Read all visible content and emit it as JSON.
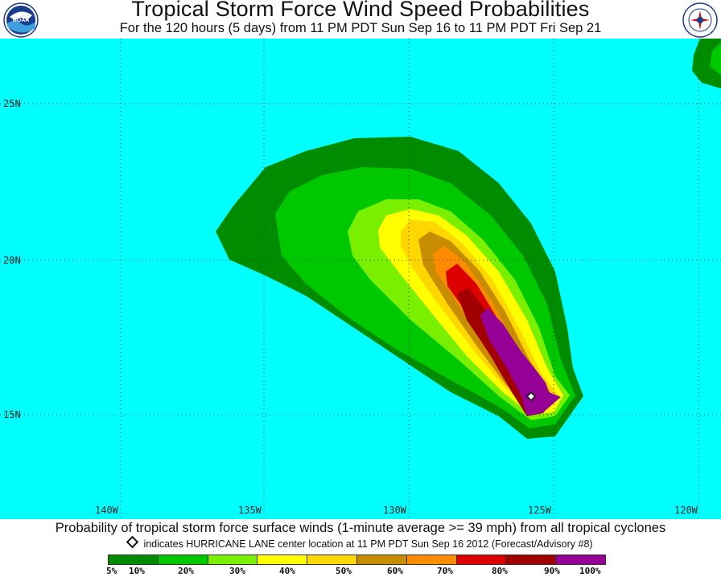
{
  "header": {
    "title": "Tropical Storm Force Wind Speed Probabilities",
    "subtitle": "For the 120 hours (5 days) from 11 PM PDT Sun Sep 16 to 11 PM PDT Fri Sep 21",
    "left_logo": "noaa-logo",
    "right_logo": "national-weather-service-logo"
  },
  "map": {
    "ocean_color": "#00ffff",
    "lat_labels": [
      "25N",
      "20N",
      "15N"
    ],
    "lon_labels": [
      "140W",
      "135W",
      "130W",
      "125W",
      "120W"
    ],
    "storm_center_marker": "diamond-icon"
  },
  "footer": {
    "caption": "Probability of tropical storm force surface winds (1-minute average >= 39 mph) from all tropical cyclones",
    "note": "indicates HURRICANE LANE center location at 11 PM PDT Sun Sep 16 2012 (Forecast/Advisory #8)"
  },
  "legend": {
    "colors": [
      "#008c00",
      "#00c800",
      "#78f000",
      "#ffff00",
      "#ffd700",
      "#c88c00",
      "#ff8c00",
      "#dc0000",
      "#a00000",
      "#960096"
    ],
    "labels": [
      "5%",
      "10%",
      "20%",
      "30%",
      "40%",
      "50%",
      "60%",
      "70%",
      "80%",
      "90%",
      "100%"
    ]
  }
}
